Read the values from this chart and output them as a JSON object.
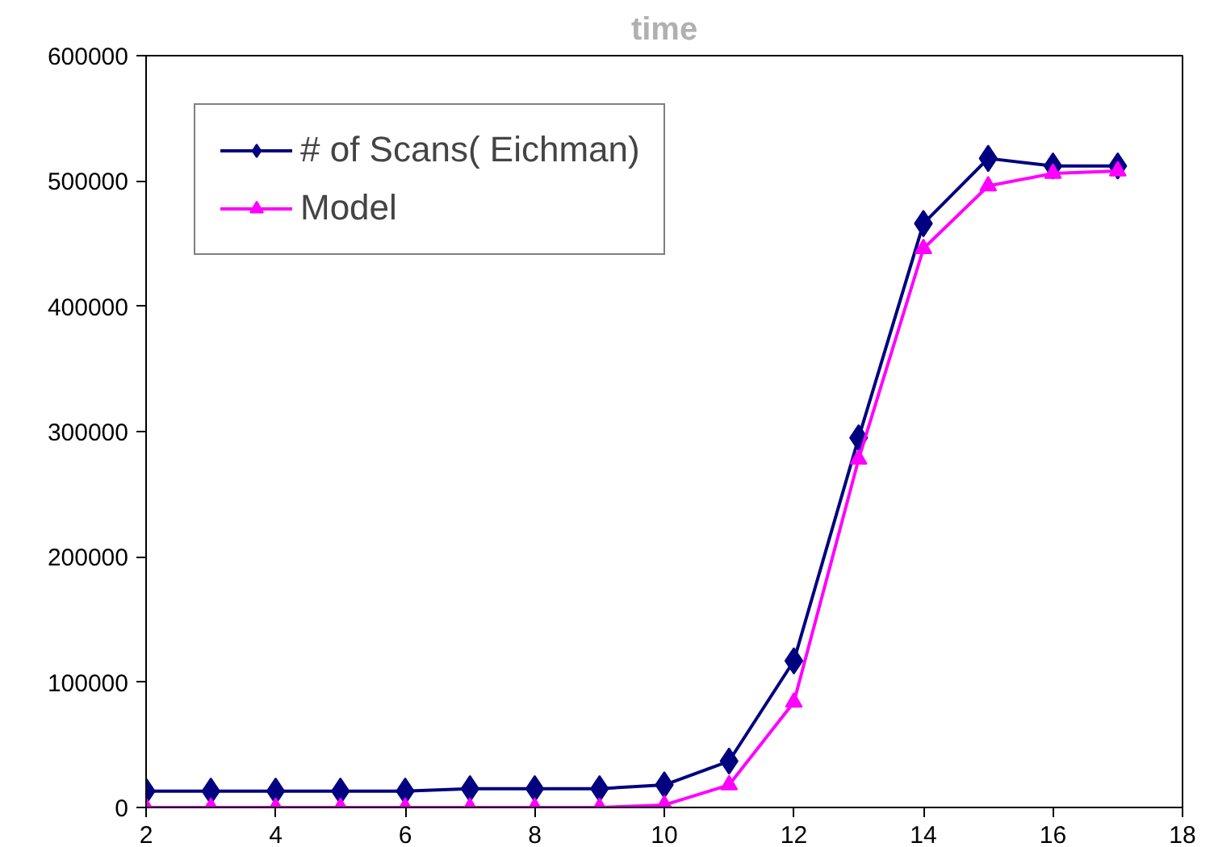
{
  "chart_data": {
    "type": "line",
    "title": "time",
    "x": [
      2,
      3,
      4,
      5,
      6,
      7,
      8,
      9,
      10,
      11,
      12,
      13,
      14,
      15,
      16,
      17
    ],
    "series": [
      {
        "name": "# of Scans( Eichman)",
        "color": "#000080",
        "marker": "diamond",
        "values": [
          13000,
          13000,
          13000,
          13000,
          13000,
          15000,
          15000,
          15000,
          18000,
          37000,
          117000,
          295000,
          466000,
          518000,
          512000,
          512000
        ]
      },
      {
        "name": "Model",
        "color": "#ff00ff",
        "marker": "triangle",
        "values": [
          0,
          0,
          0,
          0,
          0,
          0,
          0,
          0,
          2000,
          18000,
          84000,
          278000,
          446000,
          496000,
          506000,
          508000
        ]
      }
    ],
    "xlim": [
      2,
      18
    ],
    "xticks": [
      2,
      4,
      6,
      8,
      10,
      12,
      14,
      16,
      18
    ],
    "ylim": [
      0,
      600000
    ],
    "yticks": [
      0,
      100000,
      200000,
      300000,
      400000,
      500000,
      600000
    ],
    "grid": false,
    "legend": "top left",
    "line_style": "solid"
  }
}
